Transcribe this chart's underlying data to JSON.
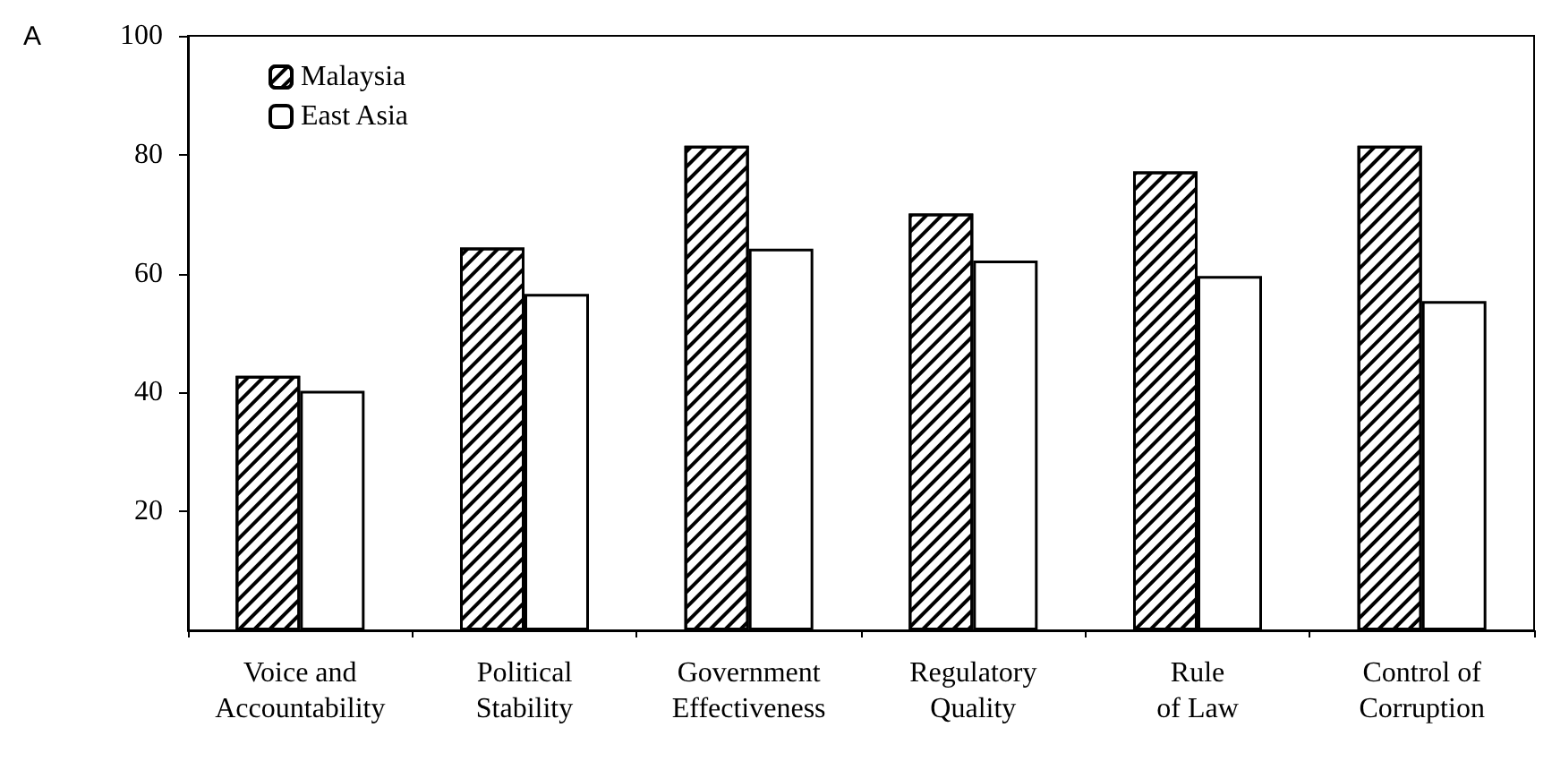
{
  "chart_data": {
    "type": "bar",
    "title": "A",
    "categories": [
      "Voice and\nAccountability",
      "Political\nStability",
      "Government\nEffectiveness",
      "Regulatory\nQuality",
      "Rule\nof Law",
      "Control of\nCorruption"
    ],
    "series": [
      {
        "name": "Malaysia",
        "color": "#000000",
        "values": [
          42.8,
          64.4,
          81.5,
          70.1,
          77.2,
          81.5
        ]
      },
      {
        "name": "East Asia",
        "color": "#ffffff",
        "values": [
          40.3,
          56.6,
          64.2,
          62.2,
          59.6,
          55.4
        ]
      }
    ],
    "ylim": [
      0,
      100
    ],
    "yticks": [
      20,
      40,
      60,
      80,
      100
    ],
    "grid": false,
    "legend": "top left"
  }
}
